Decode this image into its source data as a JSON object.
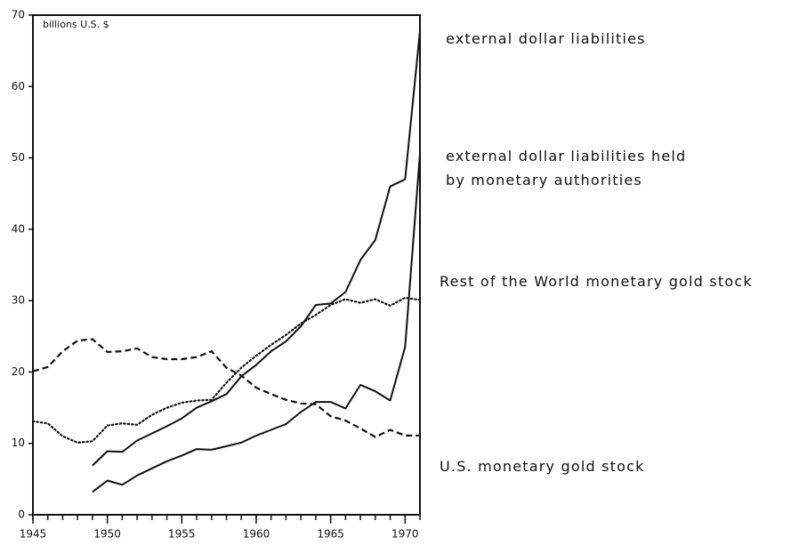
{
  "chart_data": {
    "type": "line",
    "annotation": "billions U.S. $",
    "x": [
      1945,
      1946,
      1947,
      1948,
      1949,
      1950,
      1951,
      1952,
      1953,
      1954,
      1955,
      1956,
      1957,
      1958,
      1959,
      1960,
      1961,
      1962,
      1963,
      1964,
      1965,
      1966,
      1967,
      1968,
      1969,
      1970,
      1971
    ],
    "series": [
      {
        "name": "external dollar liabilities",
        "color": "#111111",
        "style": "solid",
        "values": [
          null,
          null,
          null,
          null,
          6.9,
          8.9,
          8.8,
          10.4,
          11.4,
          12.4,
          13.5,
          15.0,
          15.9,
          16.9,
          19.4,
          21.0,
          22.9,
          24.3,
          26.4,
          29.4,
          29.6,
          31.2,
          35.7,
          38.5,
          46.0,
          47.0,
          67.8
        ]
      },
      {
        "name": "external dollar liabilities held by monetary authorities",
        "color": "#111111",
        "style": "solid",
        "values": [
          null,
          null,
          null,
          null,
          3.2,
          4.8,
          4.2,
          5.5,
          6.5,
          7.5,
          8.3,
          9.2,
          9.1,
          9.6,
          10.1,
          11.1,
          11.9,
          12.7,
          14.4,
          15.8,
          15.8,
          14.9,
          18.2,
          17.3,
          16.0,
          23.5,
          50.6
        ]
      },
      {
        "name": "Rest of the World monetary gold stock",
        "color": "#111111",
        "style": "dotted",
        "values": [
          13.1,
          12.8,
          11.0,
          10.1,
          10.3,
          12.5,
          12.8,
          12.6,
          14.0,
          15.0,
          15.7,
          16.0,
          16.1,
          18.5,
          20.6,
          22.3,
          23.8,
          25.2,
          26.8,
          28.0,
          29.4,
          30.2,
          29.7,
          30.2,
          29.3,
          30.4,
          30.1
        ]
      },
      {
        "name": "U.S. monetary gold stock",
        "color": "#111111",
        "style": "dashed",
        "values": [
          20.1,
          20.7,
          22.9,
          24.4,
          24.6,
          22.8,
          22.9,
          23.3,
          22.1,
          21.8,
          21.8,
          22.1,
          22.9,
          20.6,
          19.5,
          17.8,
          16.9,
          16.1,
          15.6,
          15.5,
          13.8,
          13.2,
          12.1,
          10.9,
          11.9,
          11.1,
          11.1
        ]
      }
    ],
    "xlim": [
      1945,
      1971
    ],
    "xticks": [
      1945,
      1950,
      1955,
      1960,
      1965,
      1970
    ],
    "ylim": [
      0,
      70
    ],
    "yticks": [
      0,
      10,
      20,
      30,
      40,
      50,
      60,
      70
    ]
  }
}
